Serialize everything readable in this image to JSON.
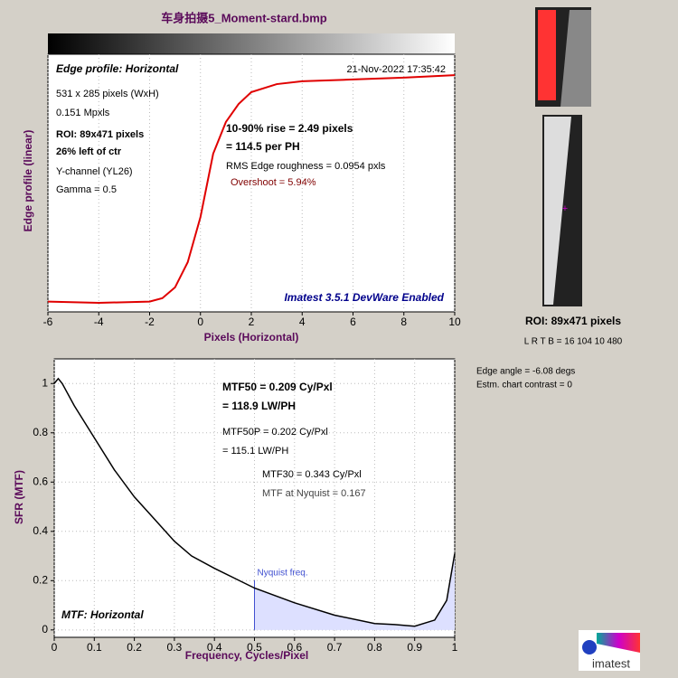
{
  "title": "车身拍摄5_Moment-stard.bmp",
  "chart_data": [
    {
      "type": "line",
      "title": "Edge profile: Horizontal",
      "xlabel": "Pixels (Horizontal)",
      "ylabel": "Edge profile (linear)",
      "x": [
        -6,
        -4,
        -2,
        -1.5,
        -1,
        -0.5,
        0,
        0.5,
        1,
        1.5,
        2,
        3,
        4,
        6,
        8,
        10
      ],
      "values": [
        0.04,
        0.035,
        0.04,
        0.053,
        0.095,
        0.193,
        0.368,
        0.614,
        0.737,
        0.807,
        0.853,
        0.884,
        0.895,
        0.902,
        0.909,
        0.919
      ],
      "color": "#e00000",
      "xlim": [
        -6,
        10
      ],
      "ylim": [
        0,
        1
      ],
      "xticks": [
        -6,
        -4,
        -2,
        0,
        2,
        4,
        6,
        8,
        10
      ],
      "grid": true,
      "annotations": [
        "21-Nov-2022 17:35:42",
        "531 x 285 pixels (WxH)",
        "0.151 Mpxls",
        "ROI:  89x471 pixels",
        "26% left of ctr",
        "Y-channel  (YL26)",
        "Gamma = 0.5",
        "10-90% rise = 2.49 pixels",
        "= 114.5 per PH",
        "RMS Edge roughness = 0.0954 pxls",
        "Overshoot = 5.94%",
        "Imatest 3.5.1 DevWare Enabled"
      ]
    },
    {
      "type": "line",
      "title": "MTF: Horizontal",
      "xlabel": "Frequency, Cycles/Pixel",
      "ylabel": "SFR (MTF)",
      "x": [
        0,
        0.01,
        0.02,
        0.05,
        0.1,
        0.15,
        0.2,
        0.25,
        0.3,
        0.343,
        0.4,
        0.5,
        0.6,
        0.7,
        0.8,
        0.85,
        0.9,
        0.95,
        0.98,
        1
      ],
      "values": [
        1,
        1.02,
        1,
        0.91,
        0.78,
        0.65,
        0.54,
        0.45,
        0.36,
        0.3,
        0.25,
        0.17,
        0.11,
        0.06,
        0.026,
        0.022,
        0.015,
        0.04,
        0.12,
        0.31
      ],
      "color": "#000000",
      "xlim": [
        0,
        1
      ],
      "ylim": [
        -0.03,
        1.1
      ],
      "xticks": [
        0,
        0.1,
        0.2,
        0.3,
        0.4,
        0.5,
        0.6,
        0.7,
        0.8,
        0.9,
        1
      ],
      "yticks": [
        0,
        0.2,
        0.4,
        0.6,
        0.8,
        1
      ],
      "grid": true,
      "nyquist": 0.5,
      "nyquist_label": "Nyquist freq.",
      "annotations": [
        "MTF50 = 0.209 Cy/Pxl",
        "= 118.9 LW/PH",
        "MTF50P = 0.202 Cy/Pxl",
        "= 115.1 LW/PH",
        "MTF30 = 0.343 Cy/Pxl",
        "MTF at Nyquist = 0.167"
      ]
    }
  ],
  "side": {
    "roi": "ROI:  89x471 pixels",
    "lrtb": "L R  T B = 16 104  10 480",
    "edge_angle": "Edge angle = -6.08 degs",
    "contrast": "Estm. chart contrast = 0",
    "logo": "imatest"
  }
}
